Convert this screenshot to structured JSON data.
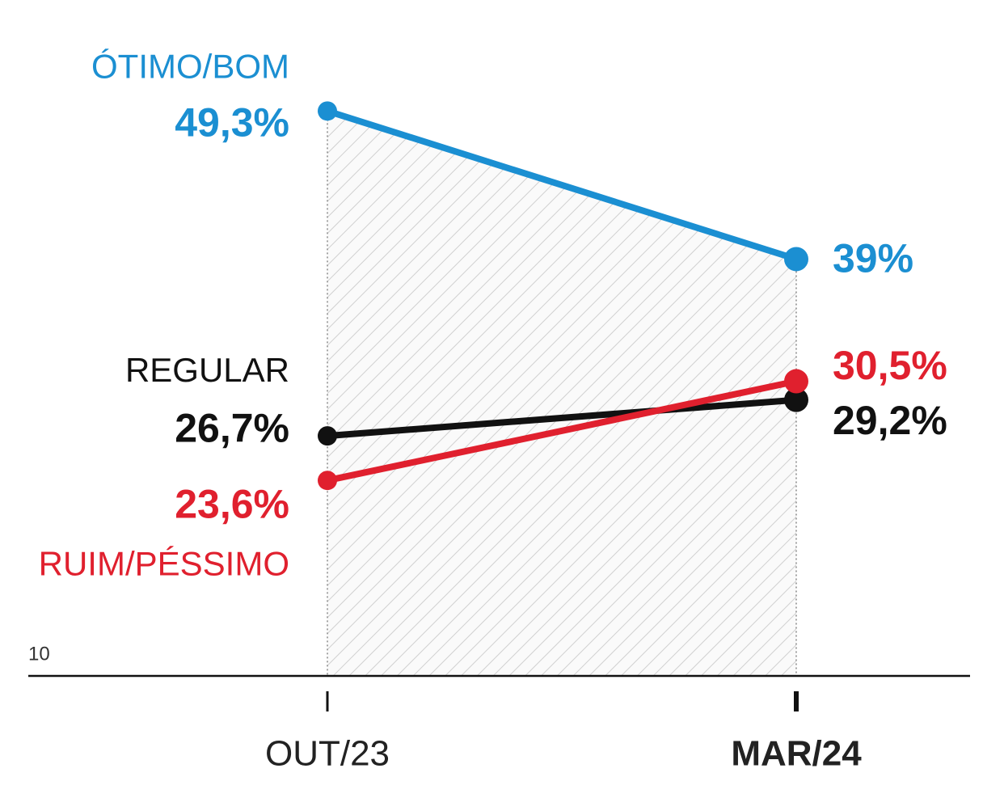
{
  "chart_data": {
    "type": "line",
    "categories": [
      "OUT/23",
      "MAR/24"
    ],
    "series": [
      {
        "name": "ÓTIMO/BOM",
        "color": "#1b8fd2",
        "values": [
          49.3,
          39
        ],
        "value_labels": [
          "49,3%",
          "39%"
        ]
      },
      {
        "name": "REGULAR",
        "color": "#111111",
        "values": [
          26.7,
          29.2
        ],
        "value_labels": [
          "26,7%",
          "29,2%"
        ]
      },
      {
        "name": "RUIM/PÉSSIMO",
        "color": "#e0202e",
        "values": [
          23.6,
          30.5
        ],
        "value_labels": [
          "23,6%",
          "30,5%"
        ]
      }
    ],
    "ylim": [
      10,
      55
    ],
    "yticks": [
      10
    ]
  }
}
